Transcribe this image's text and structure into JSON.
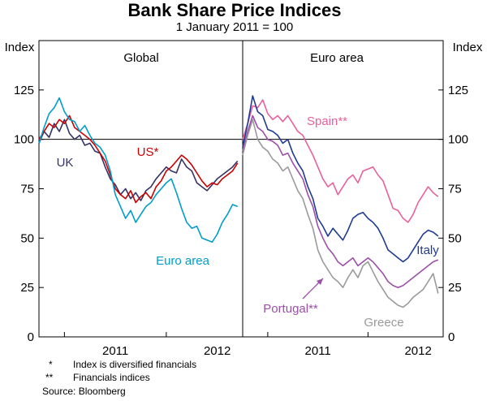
{
  "chart_data": {
    "type": "line",
    "title": "Bank Share Price Indices",
    "subtitle": "1 January 2011 = 100",
    "ylabel_left": "Index",
    "ylabel_right": "Index",
    "ylim": [
      0,
      150
    ],
    "yticks": [
      0,
      25,
      50,
      75,
      100,
      125
    ],
    "reference_line": 100,
    "x_domain": [
      2010.75,
      2012.75
    ],
    "xticks": [
      {
        "label": "2011",
        "at": 2011.5
      },
      {
        "label": "2012",
        "at": 2012.5
      }
    ],
    "panels": [
      {
        "title": "Global",
        "series": [
          {
            "name": "UK",
            "color": "#333366",
            "label": "UK",
            "x": [
              2010.75,
              2010.8,
              2010.85,
              2010.9,
              2010.95,
              2011.0,
              2011.05,
              2011.1,
              2011.15,
              2011.2,
              2011.25,
              2011.3,
              2011.35,
              2011.4,
              2011.45,
              2011.5,
              2011.55,
              2011.6,
              2011.65,
              2011.7,
              2011.75,
              2011.8,
              2011.85,
              2011.9,
              2011.95,
              2012.0,
              2012.05,
              2012.1,
              2012.15,
              2012.2,
              2012.25,
              2012.3,
              2012.35,
              2012.4,
              2012.45,
              2012.5,
              2012.55,
              2012.6,
              2012.65,
              2012.7
            ],
            "values": [
              98,
              104,
              101,
              108,
              104,
              110,
              103,
              100,
              102,
              97,
              98,
              94,
              93,
              86,
              80,
              77,
              72,
              75,
              70,
              73,
              69,
              74,
              76,
              80,
              83,
              86,
              84,
              83,
              90,
              86,
              84,
              78,
              76,
              74,
              77,
              80,
              82,
              84,
              86,
              89
            ]
          },
          {
            "name": "US*",
            "color": "#cc0000",
            "label": "US*",
            "x": [
              2010.75,
              2010.8,
              2010.85,
              2010.9,
              2010.95,
              2011.0,
              2011.05,
              2011.1,
              2011.15,
              2011.2,
              2011.25,
              2011.3,
              2011.35,
              2011.4,
              2011.45,
              2011.5,
              2011.55,
              2011.6,
              2011.65,
              2011.7,
              2011.75,
              2011.8,
              2011.85,
              2011.9,
              2011.95,
              2012.0,
              2012.05,
              2012.1,
              2012.15,
              2012.2,
              2012.25,
              2012.3,
              2012.35,
              2012.4,
              2012.45,
              2012.5,
              2012.55,
              2012.6,
              2012.65,
              2012.7
            ],
            "values": [
              100,
              104,
              108,
              106,
              110,
              108,
              112,
              106,
              104,
              102,
              100,
              97,
              93,
              89,
              82,
              75,
              72,
              70,
              74,
              68,
              71,
              73,
              70,
              76,
              79,
              84,
              86,
              89,
              92,
              90,
              87,
              83,
              79,
              76,
              78,
              77,
              80,
              82,
              84,
              88
            ]
          },
          {
            "name": "Euro area",
            "color": "#009ec8",
            "label": "Euro area",
            "x": [
              2010.75,
              2010.8,
              2010.85,
              2010.9,
              2010.95,
              2011.0,
              2011.05,
              2011.1,
              2011.15,
              2011.2,
              2011.25,
              2011.3,
              2011.35,
              2011.4,
              2011.45,
              2011.5,
              2011.55,
              2011.6,
              2011.65,
              2011.7,
              2011.75,
              2011.8,
              2011.85,
              2011.9,
              2011.95,
              2012.0,
              2012.05,
              2012.1,
              2012.15,
              2012.2,
              2012.25,
              2012.3,
              2012.35,
              2012.4,
              2012.45,
              2012.5,
              2012.55,
              2012.6,
              2012.65,
              2012.7
            ],
            "values": [
              98,
              106,
              113,
              116,
              121,
              114,
              110,
              109,
              104,
              107,
              102,
              98,
              96,
              92,
              84,
              72,
              66,
              60,
              64,
              58,
              62,
              66,
              68,
              72,
              75,
              78,
              80,
              73,
              65,
              58,
              55,
              56,
              50,
              49,
              48,
              52,
              58,
              62,
              67,
              66
            ]
          }
        ]
      },
      {
        "title": "Euro area",
        "series": [
          {
            "name": "Spain**",
            "color": "#e8609c",
            "label": "Spain**",
            "x": [
              2010.75,
              2010.8,
              2010.85,
              2010.9,
              2010.95,
              2011.0,
              2011.05,
              2011.1,
              2011.15,
              2011.2,
              2011.25,
              2011.3,
              2011.35,
              2011.4,
              2011.45,
              2011.5,
              2011.55,
              2011.6,
              2011.65,
              2011.7,
              2011.75,
              2011.8,
              2011.85,
              2011.9,
              2011.95,
              2012.0,
              2012.05,
              2012.1,
              2012.15,
              2012.2,
              2012.25,
              2012.3,
              2012.35,
              2012.4,
              2012.45,
              2012.5,
              2012.55,
              2012.6,
              2012.65,
              2012.7
            ],
            "values": [
              100,
              108,
              117,
              116,
              120,
              113,
              110,
              112,
              109,
              112,
              108,
              104,
              102,
              97,
              92,
              86,
              80,
              76,
              78,
              72,
              76,
              80,
              82,
              78,
              84,
              85,
              86,
              82,
              79,
              72,
              65,
              64,
              60,
              58,
              62,
              68,
              72,
              76,
              73,
              71
            ]
          },
          {
            "name": "Italy",
            "color": "#1f3a93",
            "label": "Italy",
            "x": [
              2010.75,
              2010.8,
              2010.85,
              2010.9,
              2010.95,
              2011.0,
              2011.05,
              2011.1,
              2011.15,
              2011.2,
              2011.25,
              2011.3,
              2011.35,
              2011.4,
              2011.45,
              2011.5,
              2011.55,
              2011.6,
              2011.65,
              2011.7,
              2011.75,
              2011.8,
              2011.85,
              2011.9,
              2011.95,
              2012.0,
              2012.05,
              2012.1,
              2012.15,
              2012.2,
              2012.25,
              2012.3,
              2012.35,
              2012.4,
              2012.45,
              2012.5,
              2012.55,
              2012.6,
              2012.65,
              2012.7
            ],
            "values": [
              96,
              108,
              122,
              114,
              112,
              105,
              104,
              102,
              98,
              100,
              93,
              88,
              84,
              76,
              70,
              60,
              56,
              51,
              55,
              52,
              49,
              54,
              60,
              62,
              63,
              60,
              58,
              55,
              50,
              44,
              42,
              40,
              38,
              40,
              44,
              48,
              52,
              54,
              53,
              51
            ]
          },
          {
            "name": "Portugal**",
            "color": "#9b4fa8",
            "label": "Portugal**",
            "x": [
              2010.75,
              2010.8,
              2010.85,
              2010.9,
              2010.95,
              2011.0,
              2011.05,
              2011.1,
              2011.15,
              2011.2,
              2011.25,
              2011.3,
              2011.35,
              2011.4,
              2011.45,
              2011.5,
              2011.55,
              2011.6,
              2011.65,
              2011.7,
              2011.75,
              2011.8,
              2011.85,
              2011.9,
              2011.95,
              2012.0,
              2012.05,
              2012.1,
              2012.15,
              2012.2,
              2012.25,
              2012.3,
              2012.35,
              2012.4,
              2012.45,
              2012.5,
              2012.55,
              2012.6,
              2012.65,
              2012.7
            ],
            "values": [
              94,
              104,
              112,
              106,
              104,
              100,
              99,
              97,
              92,
              93,
              88,
              84,
              80,
              72,
              66,
              56,
              50,
              45,
              42,
              38,
              36,
              38,
              40,
              36,
              38,
              40,
              38,
              35,
              32,
              28,
              26,
              25,
              26,
              28,
              30,
              32,
              34,
              36,
              38,
              39
            ]
          },
          {
            "name": "Greece",
            "color": "#9a9a9a",
            "label": "Greece",
            "x": [
              2010.75,
              2010.8,
              2010.85,
              2010.9,
              2010.95,
              2011.0,
              2011.05,
              2011.1,
              2011.15,
              2011.2,
              2011.25,
              2011.3,
              2011.35,
              2011.4,
              2011.45,
              2011.5,
              2011.55,
              2011.6,
              2011.65,
              2011.7,
              2011.75,
              2011.8,
              2011.85,
              2011.9,
              2011.95,
              2012.0,
              2012.05,
              2012.1,
              2012.15,
              2012.2,
              2012.25,
              2012.3,
              2012.35,
              2012.4,
              2012.45,
              2012.5,
              2012.55,
              2012.6,
              2012.65,
              2012.7
            ],
            "values": [
              92,
              102,
              110,
              100,
              96,
              94,
              90,
              88,
              84,
              86,
              80,
              74,
              70,
              62,
              55,
              44,
              38,
              34,
              30,
              28,
              25,
              30,
              34,
              30,
              36,
              38,
              33,
              28,
              24,
              20,
              18,
              16,
              15,
              17,
              20,
              22,
              24,
              28,
              32,
              22
            ]
          }
        ]
      }
    ],
    "footnotes": [
      {
        "mark": "*",
        "text": "Index is diversified financials"
      },
      {
        "mark": "**",
        "text": "Financials indices"
      }
    ],
    "source": "Source: Bloomberg"
  }
}
